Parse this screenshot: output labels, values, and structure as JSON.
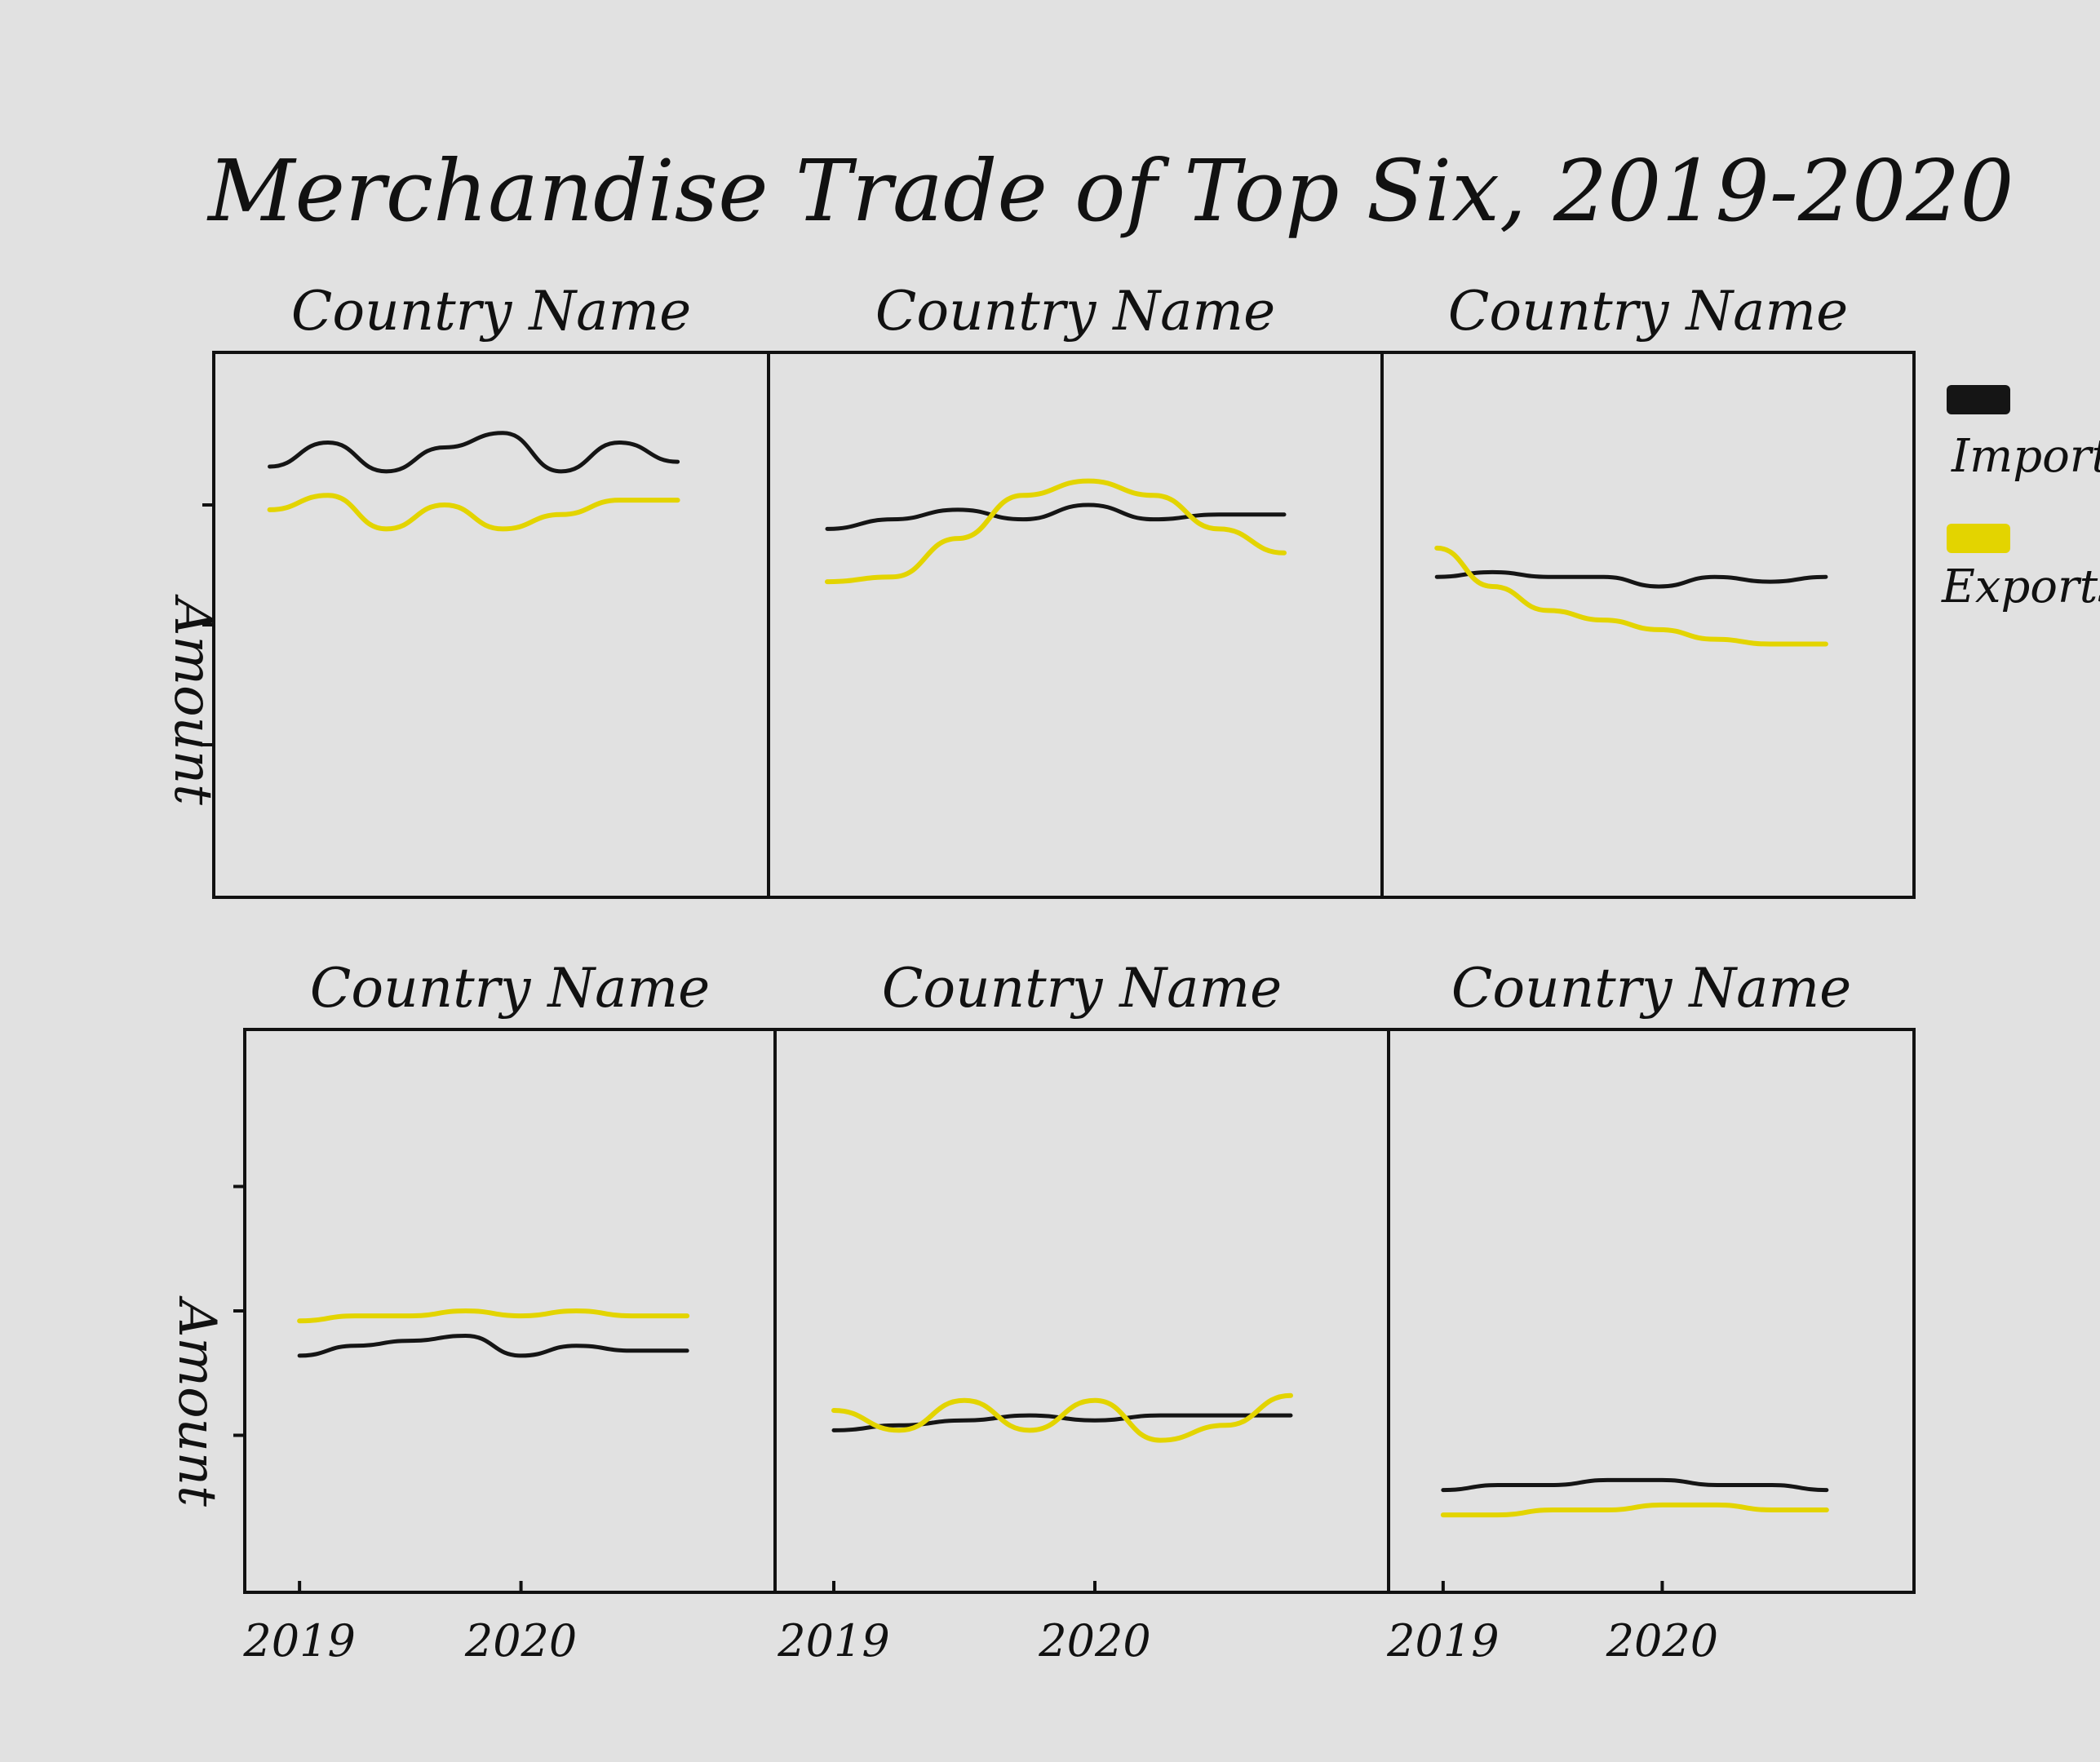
{
  "title": "Merchandise Trade of Top Six, 2019-2020",
  "colors": {
    "imports": "#151515",
    "exports": "#e3d400",
    "paper": "#e1e1e1",
    "ink": "#111111"
  },
  "legend": {
    "placement": "right",
    "imports_label": "Imports",
    "exports_label": "Exports"
  },
  "ylabels": {
    "top_row": "Amount",
    "bottom_row": "Amount"
  },
  "chart_data": {
    "type": "line",
    "title": "Merchandise Trade of Top Six, 2019-2020",
    "layout": "2x3 small multiples",
    "x": [
      2019.0,
      2019.25,
      2019.5,
      2019.75,
      2020.0,
      2020.25,
      2020.5,
      2020.75
    ],
    "xticks": [
      "2019",
      "2020"
    ],
    "xlim": [
      2018.9,
      2021.0
    ],
    "ylim": [
      0,
      100
    ],
    "ylabel": "Amount",
    "legend": [
      "Imports",
      "Exports"
    ],
    "panels": [
      {
        "title": "Country Name",
        "series": [
          {
            "name": "Imports",
            "values": [
              83,
              88,
              82,
              87,
              90,
              82,
              88,
              84
            ]
          },
          {
            "name": "Exports",
            "values": [
              74,
              77,
              70,
              75,
              70,
              73,
              76,
              76
            ]
          }
        ]
      },
      {
        "title": "Country Name",
        "series": [
          {
            "name": "Imports",
            "values": [
              70,
              72,
              74,
              72,
              75,
              72,
              73,
              73
            ]
          },
          {
            "name": "Exports",
            "values": [
              59,
              60,
              68,
              77,
              80,
              77,
              70,
              65
            ]
          }
        ]
      },
      {
        "title": "Country Name",
        "series": [
          {
            "name": "Imports",
            "values": [
              60,
              61,
              60,
              60,
              58,
              60,
              59,
              60
            ]
          },
          {
            "name": "Exports",
            "values": [
              66,
              58,
              53,
              51,
              49,
              47,
              46,
              46
            ]
          }
        ]
      },
      {
        "title": "Country Name",
        "series": [
          {
            "name": "Imports",
            "values": [
              41,
              43,
              44,
              45,
              41,
              43,
              42,
              42
            ]
          },
          {
            "name": "Exports",
            "values": [
              48,
              49,
              49,
              50,
              49,
              50,
              49,
              49
            ]
          }
        ]
      },
      {
        "title": "Country Name",
        "series": [
          {
            "name": "Imports",
            "values": [
              26,
              27,
              28,
              29,
              28,
              29,
              29,
              29
            ]
          },
          {
            "name": "Exports",
            "values": [
              30,
              26,
              32,
              26,
              32,
              24,
              27,
              33
            ]
          }
        ]
      },
      {
        "title": "Country Name",
        "series": [
          {
            "name": "Imports",
            "values": [
              14,
              15,
              15,
              16,
              16,
              15,
              15,
              14
            ]
          },
          {
            "name": "Exports",
            "values": [
              9,
              9,
              10,
              10,
              11,
              11,
              10,
              10
            ]
          }
        ]
      }
    ]
  }
}
